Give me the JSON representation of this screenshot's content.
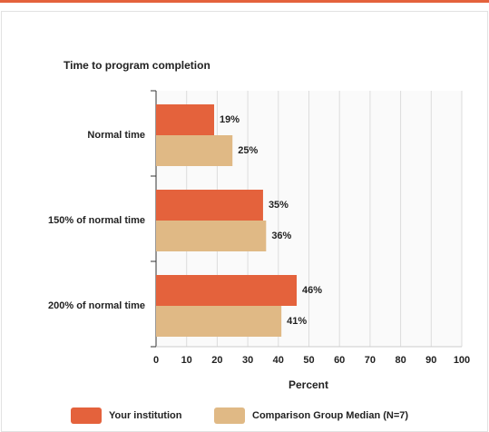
{
  "chart_data": {
    "type": "hbar",
    "title": "Time to program completion",
    "categories": [
      "Normal time",
      "150% of normal time",
      "200% of normal time"
    ],
    "series": [
      {
        "name": "Your institution",
        "color": "#e4623c",
        "values": [
          19,
          35,
          46
        ],
        "value_labels": [
          "19%",
          "35%",
          "46%"
        ]
      },
      {
        "name": "Comparison Group Median (N=7)",
        "color": "#e0b985",
        "values": [
          25,
          36,
          41
        ],
        "value_labels": [
          "25%",
          "36%",
          "41%"
        ]
      }
    ],
    "xlabel": "Percent",
    "xlim": [
      0,
      100
    ],
    "xticks": [
      0,
      10,
      20,
      30,
      40,
      50,
      60,
      70,
      80,
      90,
      100
    ],
    "grid": true
  }
}
